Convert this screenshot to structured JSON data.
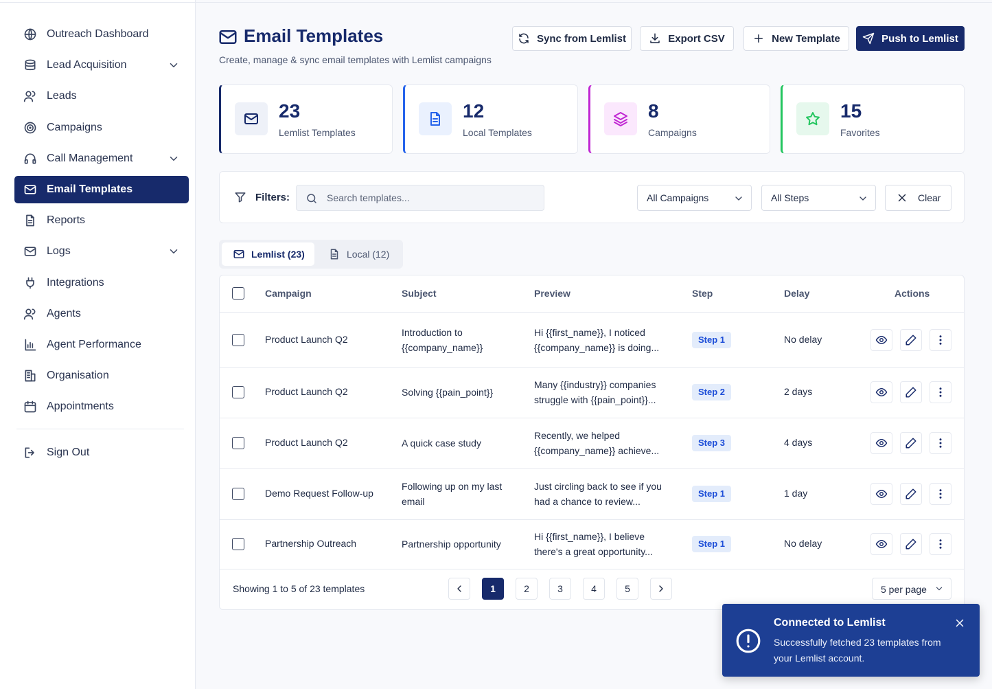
{
  "sidebar": {
    "items": [
      "Outreach Dashboard",
      "Lead Acquisition",
      "Leads",
      "Campaigns",
      "Call Management",
      "Email Templates",
      "Reports",
      "Logs",
      "Integrations",
      "Agents",
      "Agent Performance",
      "Organisation",
      "Appointments"
    ],
    "sign_out": "Sign Out"
  },
  "header": {
    "title": "Email Templates",
    "subtitle": "Create, manage & sync email templates with Lemlist campaigns",
    "buttons": [
      "Sync from Lemlist",
      "Export CSV",
      "New Template",
      "Push to Lemlist"
    ]
  },
  "stats": [
    {
      "value": 23,
      "label": "Lemlist Templates"
    },
    {
      "value": 12,
      "label": "Local Templates"
    },
    {
      "value": 8,
      "label": "Campaigns"
    },
    {
      "value": 15,
      "label": "Favorites"
    }
  ],
  "filters": {
    "label": "Filters:",
    "search": "Search templates...",
    "campaign": "All Campaigns",
    "steps": "All Steps",
    "clear": "Clear"
  },
  "tabs": [
    "Lemlist (23)",
    "Local (12)"
  ],
  "table": {
    "columns": [
      "Campaign",
      "Subject",
      "Preview",
      "Step",
      "Delay",
      "Actions"
    ],
    "rows": [
      [
        "Product Launch Q2",
        "Introduction to {{company_name}}",
        "Hi {{first_name}}, I noticed {{company_name}} is doing...",
        "Step 1",
        "No delay"
      ],
      [
        "Product Launch Q2",
        "Solving {{pain_point}}",
        "Many {{industry}} companies struggle with {{pain_point}}...",
        "Step 2",
        "2 days"
      ],
      [
        "Product Launch Q2",
        "A quick case study",
        "Recently, we helped {{company_name}} achieve...",
        "Step 3",
        "4 days"
      ],
      [
        "Demo Request Follow-up",
        "Following up on my last email",
        "Just circling back to see if you had a chance to review...",
        "Step 1",
        "1 day"
      ],
      [
        "Partnership Outreach",
        "Partnership opportunity",
        "Hi {{first_name}}, I believe there's a great opportunity...",
        "Step 1",
        "No delay"
      ]
    ]
  },
  "pagination": {
    "summary": "Showing 1 to 5 of 23 templates",
    "pages": [
      1,
      2,
      3,
      4,
      5
    ],
    "per_page": "5 per page"
  },
  "toast": {
    "title": "Connected to Lemlist",
    "message": "Successfully fetched 23 templates from your Lemlist account."
  }
}
